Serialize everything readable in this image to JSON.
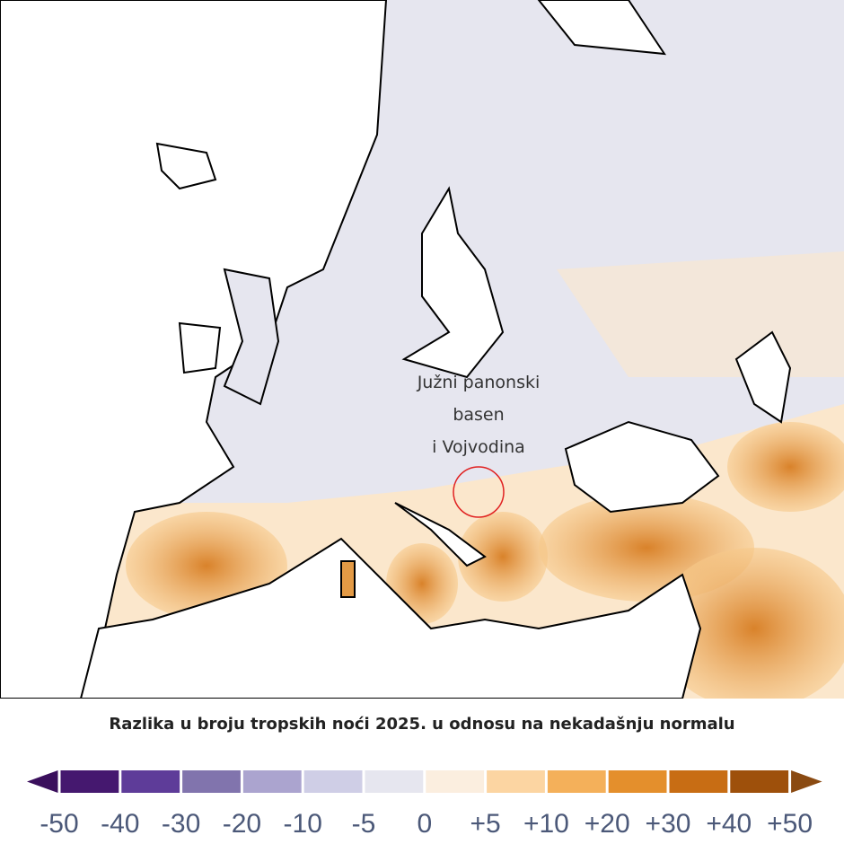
{
  "map": {
    "annotation": [
      "Južni panonski",
      "basen",
      "i Vojvodina"
    ]
  },
  "legend": {
    "title": "Razlika u broju tropskih noći 2025. u odnosu na nekadašnju normalu",
    "ticks": [
      -50,
      -40,
      -30,
      -20,
      -10,
      -5,
      0,
      {
        "value": 5,
        "label": "+5"
      },
      {
        "value": 10,
        "label": "+10"
      },
      {
        "value": 20,
        "label": "+20"
      },
      {
        "value": 30,
        "label": "+30"
      },
      {
        "value": 40,
        "label": "+40"
      },
      {
        "value": 50,
        "label": "+50"
      }
    ],
    "colors": [
      "#45186f",
      "#5e3c99",
      "#8174ad",
      "#aba4cf",
      "#cfcee6",
      "#e6e6ef",
      "#fbeedf",
      "#fcd5a2",
      "#f4b05a",
      "#e48f2c",
      "#c86d14",
      "#9e500b"
    ],
    "under_color": "#3a0f5c",
    "over_color": "#8a4a12"
  }
}
